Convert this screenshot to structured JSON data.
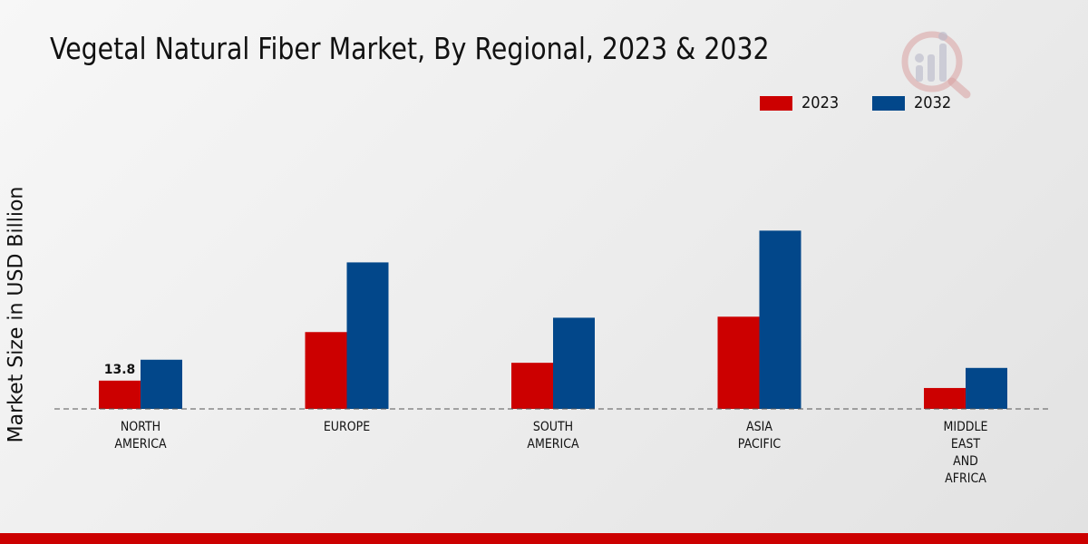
{
  "chart_data": {
    "type": "bar",
    "title": "Vegetal Natural Fiber Market, By Regional, 2023 & 2032",
    "xlabel": "",
    "ylabel": "Market Size in USD Billion",
    "ylim": [
      0,
      100
    ],
    "categories": [
      [
        "NORTH",
        "AMERICA"
      ],
      [
        "EUROPE"
      ],
      [
        "SOUTH",
        "AMERICA"
      ],
      [
        "ASIA",
        "PACIFIC"
      ],
      [
        "MIDDLE",
        "EAST",
        "AND",
        "AFRICA"
      ]
    ],
    "series": [
      {
        "name": "2023",
        "color": "#cc0000",
        "values": [
          13.8,
          37.5,
          22.5,
          45.0,
          10.2
        ]
      },
      {
        "name": "2032",
        "color": "#02478a",
        "values": [
          24.0,
          71.5,
          44.5,
          87.0,
          20.0
        ]
      }
    ],
    "data_labels": [
      {
        "series": 0,
        "index": 0,
        "text": "13.8"
      }
    ],
    "legend_position": "top-right",
    "grid": false
  },
  "logo": {
    "icon": "brand-logo-icon"
  }
}
